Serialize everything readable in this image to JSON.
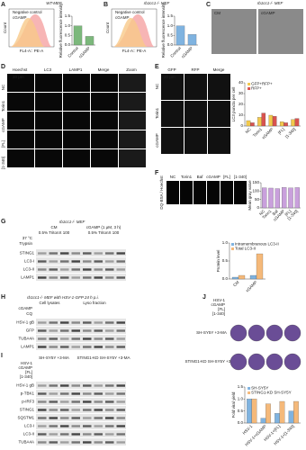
{
  "panels": {
    "A": {
      "letter": "A",
      "title": "WT-MEF",
      "legend": [
        "Negative control",
        "cGAMP"
      ],
      "xlabel": "FL4-A:: PE-A",
      "ylabel": "Count"
    },
    "B": {
      "letter": "B",
      "title": "rb1cc1-/- MEF",
      "legend": [
        "Negative control",
        "cGAMP"
      ],
      "xlabel": "FL4-A:: PE-A",
      "ylabel": "Count"
    },
    "C": {
      "letter": "C",
      "title": "rb1cc1-/- MEF",
      "images": [
        "CM",
        "cGAMP"
      ]
    },
    "D": {
      "letter": "D",
      "columns": [
        "Hoechst",
        "LC3",
        "LAMP1",
        "Merge",
        "Zoom"
      ],
      "rows": [
        "NC",
        "Torin1",
        "cGAMP",
        "[FL]",
        "[1-340]"
      ],
      "scale": "20 μm"
    },
    "E": {
      "letter": "E",
      "columns": [
        "GFP",
        "RFP",
        "Merge"
      ],
      "rows": [
        "NC",
        "Torin1",
        "cGAMP"
      ],
      "scale": "20 μm"
    },
    "F": {
      "letter": "F",
      "columns": [
        "NC",
        "Torin1",
        "Baf",
        "cGAMP",
        "[FL]",
        "[1-340]"
      ],
      "rowlabel": "DQ-BSA / Hoechst"
    },
    "G": {
      "letter": "G",
      "title": "rb1cc1-/- MEF",
      "groups": [
        "CM",
        "cGAMP (1 μM, 3 h)"
      ],
      "triton": "0.5% TritonX 100",
      "rows": [
        "37 °C",
        "Trypsin"
      ],
      "blots": [
        "STING1",
        "LC3-I",
        "LC3-II",
        "LAMP1"
      ]
    },
    "H": {
      "letter": "H",
      "title": "rb1cc1-/- MEF with HSV-1-GFP 24 h p.i.",
      "groups": [
        "Cell lysates",
        "Lyso fraction"
      ],
      "rows": [
        "cGAMP",
        "CQ"
      ],
      "blots": [
        "HSV-1 gB",
        "GFP",
        "TUBA4A",
        "LAMP1"
      ]
    },
    "I": {
      "letter": "I",
      "groups": [
        "SH-SY5Y +3-MA",
        "STING1-KD SH-SY5Y +3-MA"
      ],
      "rows": [
        "HSV-1",
        "cGAMP",
        "[FL]",
        "[1-340]"
      ],
      "blots": [
        "HSV-1 gB",
        "p-TBK1",
        "p-IRF3",
        "STING1",
        "SQSTM1",
        "LC3-I",
        "LC3-II",
        "TUBA4A"
      ]
    },
    "J": {
      "letter": "J",
      "rows": [
        "HSV-1",
        "cGAMP",
        "[FL]",
        "[1-340]"
      ],
      "plates": [
        "SH-SY5Y +3-MA",
        "STING1-KD SH-SY5Y +3-MA"
      ]
    }
  },
  "chart_data": [
    {
      "type": "bar",
      "ylabel": "Relative fluorescence intensity",
      "categories": [
        "Control",
        "cGAMP"
      ],
      "series": [
        {
          "name": "WT-MEF",
          "color": "#7cb87c",
          "values": [
            1.0,
            0.45
          ]
        }
      ],
      "ylim": [
        0,
        1.5
      ],
      "yticks": [
        {
          "value": 0,
          "label": "0.0"
        },
        0.5,
        {
          "value": 1,
          "label": "1.0"
        },
        1.5
      ]
    },
    {
      "type": "bar",
      "ylabel": "Relative fluorescence intensity",
      "categories": [
        "Control",
        "cGAMP"
      ],
      "series": [
        {
          "name": "rb1cc1-/- MEF",
          "color": "#7fb3e0",
          "values": [
            1.0,
            0.55
          ]
        }
      ],
      "ylim": [
        0,
        1.5
      ],
      "yticks": [
        {
          "value": 0,
          "label": "0.0"
        },
        0.5,
        {
          "value": 1,
          "label": "1.0"
        },
        1.5
      ]
    },
    {
      "type": "bar",
      "ylabel": "LC3 puncta per cell",
      "categories": [
        "NC",
        "Torin1",
        "cGAMP",
        "[FL]",
        "[1-340]"
      ],
      "series": [
        {
          "name": "GFP+RFP+",
          "color": "#f2c94c",
          "values": [
            5,
            8,
            10,
            4,
            6
          ]
        },
        {
          "name": "RFP+",
          "color": "#d9534f",
          "values": [
            3,
            12,
            9,
            3,
            7
          ]
        }
      ],
      "ylim": [
        0,
        40
      ],
      "yticks": [
        0,
        10,
        20,
        30,
        40
      ]
    },
    {
      "type": "bar",
      "ylabel": "Mean gray value",
      "categories": [
        "NC",
        "Torin1",
        "Baf",
        "cGAMP",
        "[FL]",
        "[1-340]"
      ],
      "series": [
        {
          "name": "DQ-BSA",
          "color": "#c9a0dc",
          "values": [
            120,
            118,
            115,
            122,
            119,
            121
          ]
        }
      ],
      "ylim": [
        0,
        150
      ],
      "yticks": [
        0,
        50,
        100,
        150
      ]
    },
    {
      "type": "bar",
      "ylabel": "Protein level",
      "categories": [
        "CM",
        "cGAMP"
      ],
      "series": [
        {
          "name": "Intramembranous LC3-II",
          "color": "#7fb3e0",
          "values": [
            0.05,
            0.1
          ]
        },
        {
          "name": "Total LC3-II",
          "color": "#f5b97a",
          "values": [
            0.1,
            0.7
          ]
        }
      ],
      "ylim": [
        0,
        1
      ],
      "yticks": [
        {
          "value": 0,
          "label": "0.0"
        },
        0.5,
        {
          "value": 1,
          "label": "1.0"
        }
      ]
    },
    {
      "type": "bar",
      "ylabel": "Fold viral yield",
      "categories": [
        "HSV-1",
        "HSV-1+cGAMP",
        "HSV-1+[FL]",
        "HSV-1+[1-340]"
      ],
      "series": [
        {
          "name": "SH-SY5Y",
          "color": "#7fb3e0",
          "values": [
            1,
            0.2,
            0.4,
            0.5
          ]
        },
        {
          "name": "STING1-KD SH-SY5Y",
          "color": "#f5b97a",
          "values": [
            1,
            0.8,
            0.9,
            0.9
          ]
        }
      ],
      "ylim": [
        0,
        1.5
      ],
      "yticks": [
        {
          "value": 0,
          "label": "0.0"
        },
        0.5,
        {
          "value": 1,
          "label": "1.0"
        },
        1.5
      ]
    }
  ]
}
